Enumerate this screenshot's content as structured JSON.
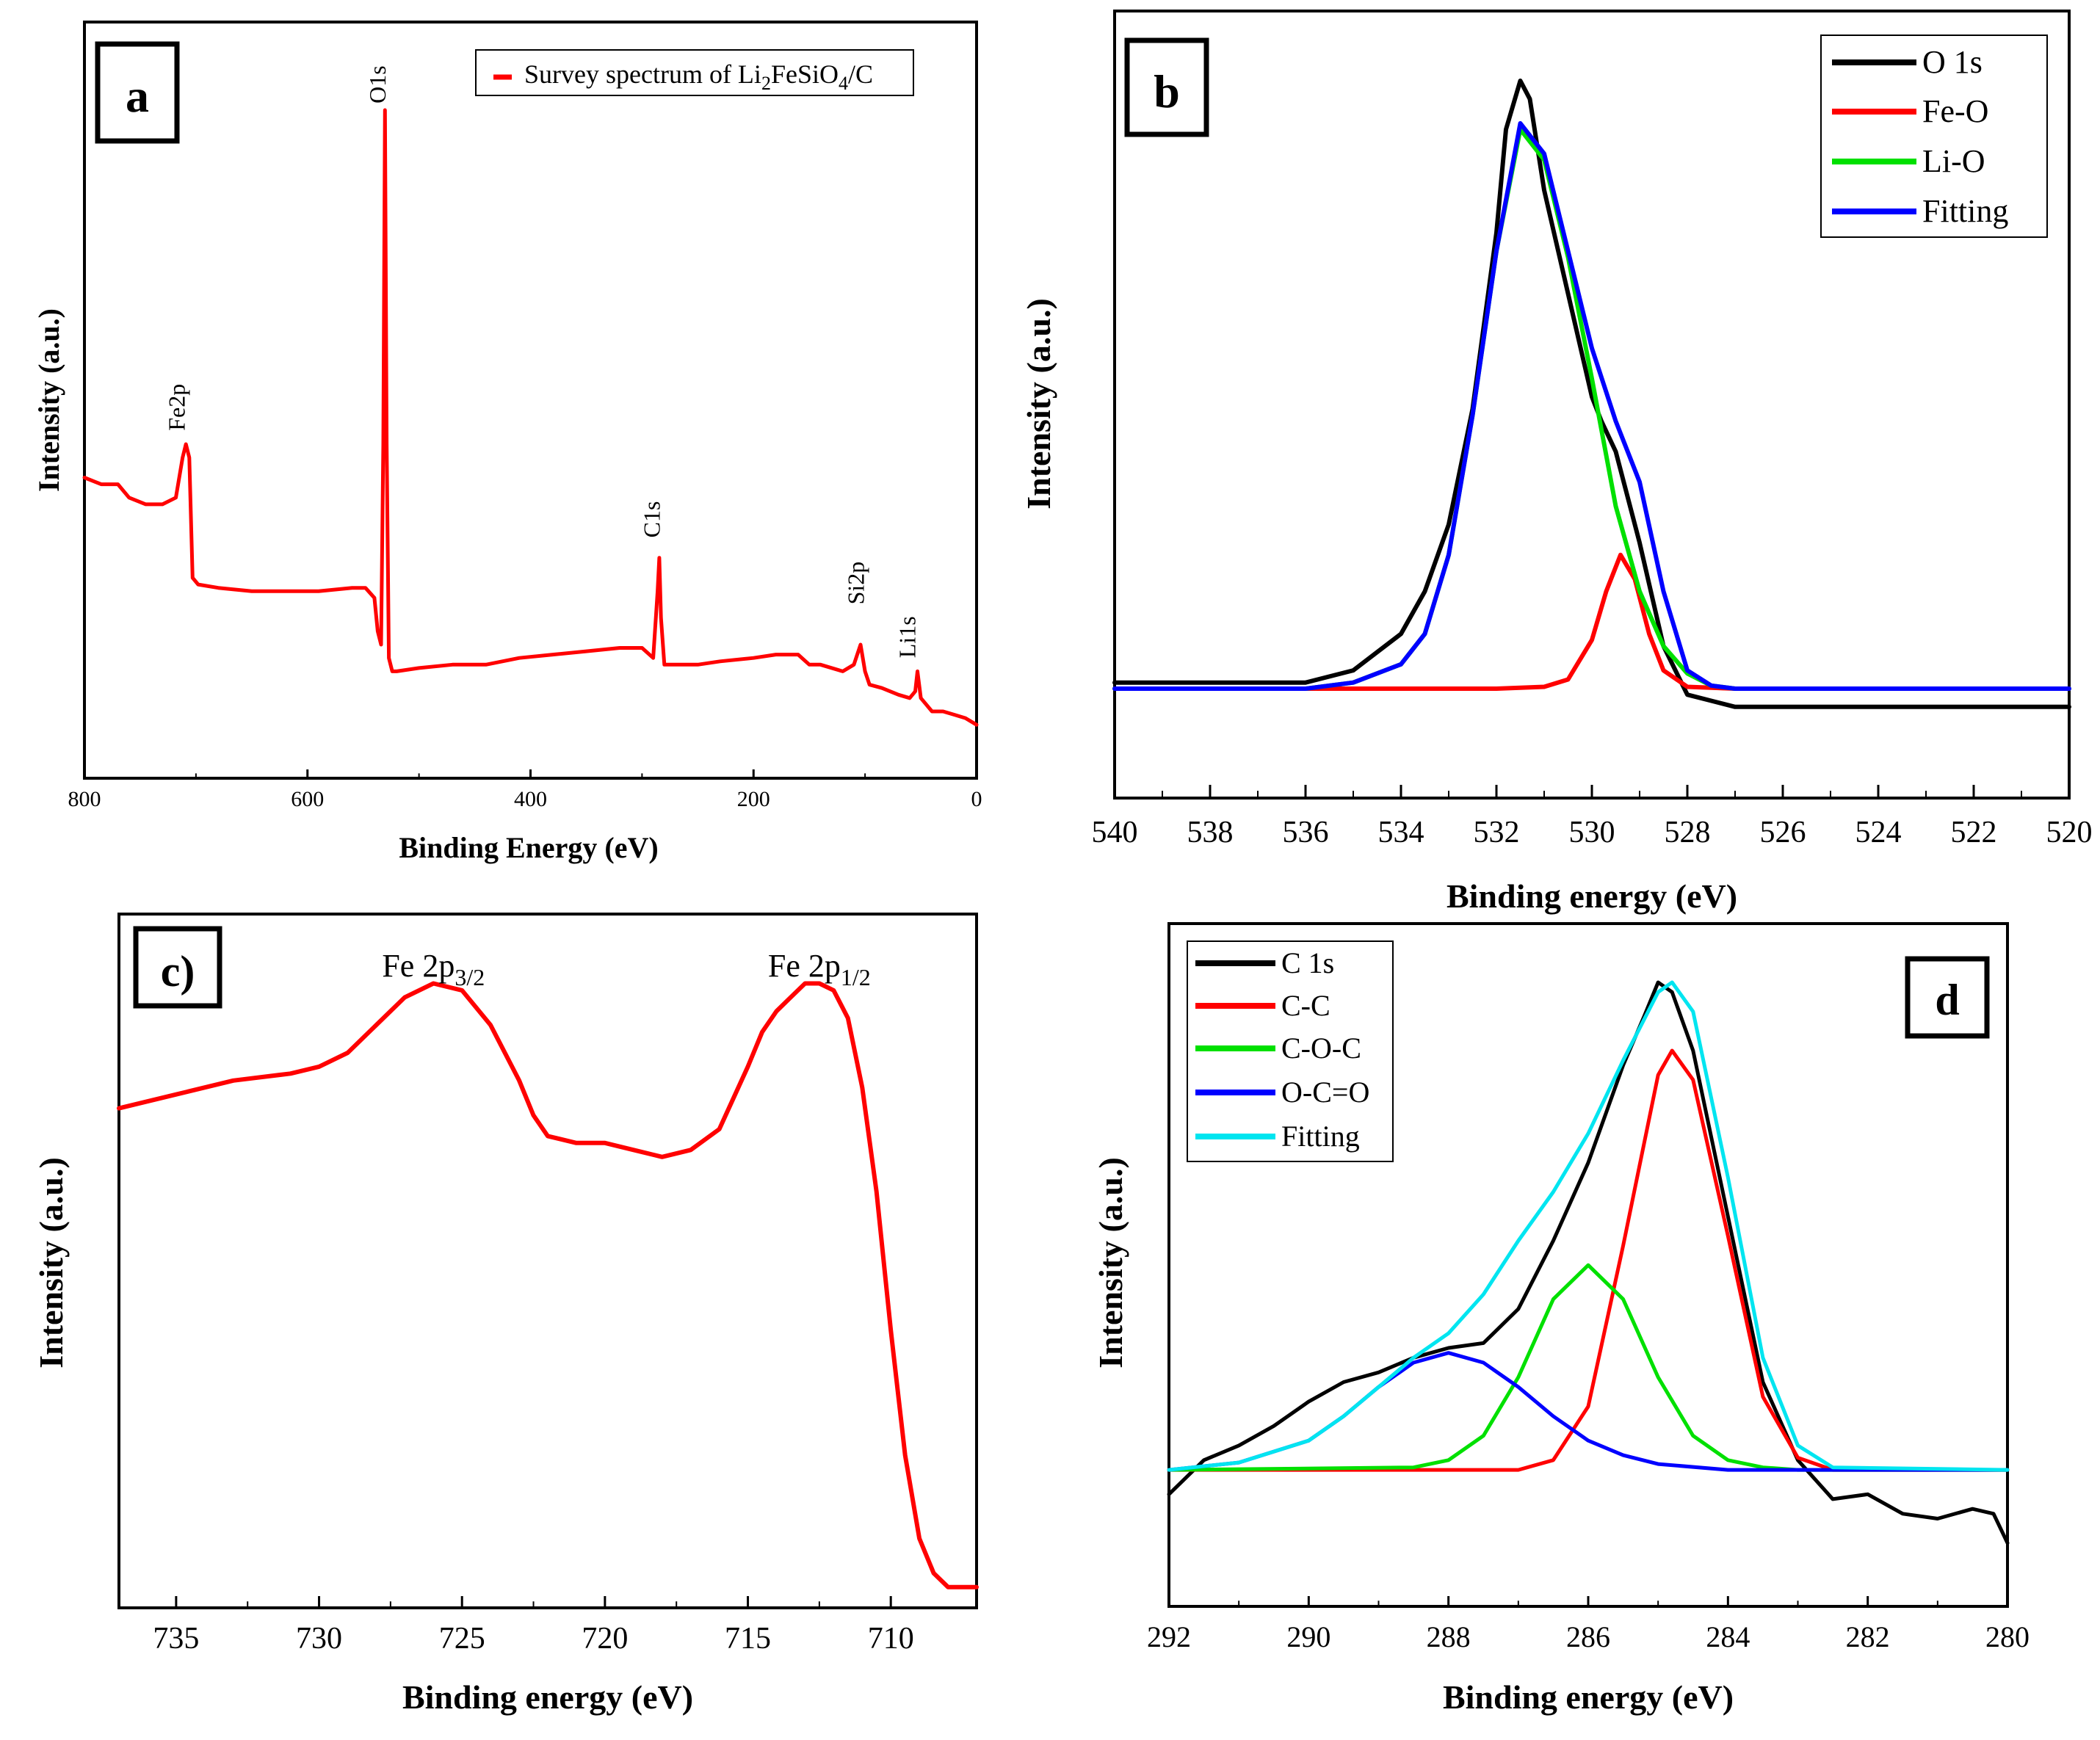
{
  "chart_data": [
    {
      "panel": "a",
      "type": "line",
      "panel_label": "a",
      "xlabel": "Binding Energy (eV)",
      "ylabel": "Intensity (a.u.)",
      "xlim": [
        800,
        0
      ],
      "ylim": [
        0,
        100
      ],
      "xticks": [
        800,
        600,
        400,
        200,
        0
      ],
      "xtick_labels": [
        "800",
        "600",
        "400",
        "200",
        "0"
      ],
      "legend": "top-right",
      "series": [
        {
          "name": "Survey spectrum of Li2FeSiO4/C",
          "legend_text": "Survey spectrum of Li",
          "legend_sub_1": "2",
          "legend_mid": "FeSiO",
          "legend_sub_2": "4",
          "legend_tail": "/C",
          "color": "#ff0000",
          "x": [
            800,
            785,
            770,
            760,
            745,
            730,
            718,
            712,
            709,
            706,
            703,
            698,
            680,
            650,
            620,
            590,
            560,
            548,
            540,
            537,
            534,
            532,
            530.5,
            529,
            527,
            524,
            520,
            500,
            470,
            440,
            410,
            380,
            350,
            320,
            300,
            290,
            286,
            284.5,
            283,
            280,
            270,
            250,
            230,
            200,
            180,
            160,
            150,
            140,
            120,
            110,
            104,
            100,
            96,
            85,
            70,
            60,
            55,
            53,
            50,
            40,
            30,
            20,
            10,
            0
          ],
          "y": [
            45,
            44,
            44,
            42,
            41,
            41,
            42,
            48,
            50,
            48,
            30,
            29,
            28.5,
            28,
            28,
            28,
            28.5,
            28.5,
            27,
            22,
            20,
            50,
            100,
            50,
            18,
            16,
            16,
            16.5,
            17,
            17,
            18,
            18.5,
            19,
            19.5,
            19.5,
            18,
            28,
            33,
            24,
            17,
            17,
            17,
            17.5,
            18,
            18.5,
            18.5,
            17,
            17,
            16,
            17,
            20,
            16,
            14,
            13.5,
            12.5,
            12,
            13,
            16,
            12,
            10,
            10,
            9.5,
            9,
            8
          ]
        }
      ],
      "annotations": [
        {
          "text": "O1s",
          "x": 530,
          "y": 101
        },
        {
          "text": "Fe2p",
          "x": 710,
          "y": 52
        },
        {
          "text": "C1s",
          "x": 284,
          "y": 36
        },
        {
          "text": "Si2p",
          "x": 101,
          "y": 26
        },
        {
          "text": "Li1s",
          "x": 55,
          "y": 18
        }
      ]
    },
    {
      "panel": "b",
      "type": "line",
      "panel_label": "b",
      "xlabel": "Binding energy (eV)",
      "ylabel": "Intensity (a.u.)",
      "xlim": [
        540,
        520
      ],
      "ylim": [
        -18,
        100
      ],
      "xticks": [
        540,
        538,
        536,
        534,
        532,
        530,
        528,
        526,
        524,
        522,
        520
      ],
      "xtick_labels": [
        "540",
        "538",
        "536",
        "534",
        "532",
        "530",
        "528",
        "526",
        "524",
        "522",
        "520"
      ],
      "legend": "top-right",
      "series": [
        {
          "name": "O 1s",
          "color": "#000000",
          "x": [
            540,
            538,
            536,
            535,
            534,
            533.5,
            533,
            532.5,
            532,
            531.8,
            531.5,
            531.3,
            531,
            530.5,
            530,
            529.8,
            529.5,
            529,
            528.5,
            528,
            527.5,
            527,
            526,
            525,
            524,
            523,
            522,
            521,
            520
          ],
          "y": [
            1,
            1,
            1,
            3,
            9,
            16,
            27,
            46,
            75,
            92,
            100,
            97,
            82,
            65,
            48,
            44,
            39,
            24,
            7,
            -1,
            -2,
            -3,
            -3,
            -3,
            -3,
            -3,
            -3,
            -3,
            -3
          ]
        },
        {
          "name": "Fe-O",
          "color": "#ff0000",
          "x": [
            540,
            532,
            531,
            530.5,
            530,
            529.7,
            529.4,
            529.1,
            528.8,
            528.5,
            528,
            527,
            520
          ],
          "y": [
            0,
            0,
            0.3,
            1.5,
            8,
            16,
            22,
            18,
            9,
            3,
            0.3,
            0,
            0
          ]
        },
        {
          "name": "Li-O",
          "color": "#00e000",
          "x": [
            540,
            536,
            535,
            534,
            533.5,
            533,
            532.5,
            532,
            531.5,
            531,
            530.5,
            530,
            529.5,
            529,
            528.5,
            528,
            527.5,
            527,
            520
          ],
          "y": [
            0,
            0,
            1,
            4,
            9,
            22,
            45,
            72,
            92,
            87,
            71,
            51,
            30,
            16,
            7,
            2.5,
            0.5,
            0,
            0
          ]
        },
        {
          "name": "Fitting",
          "color": "#0000ff",
          "x": [
            540,
            536,
            535,
            534,
            533.5,
            533,
            532.5,
            532,
            531.5,
            531,
            530.5,
            530,
            529.5,
            529,
            528.5,
            528,
            527.5,
            527,
            520
          ],
          "y": [
            0,
            0,
            1,
            4,
            9,
            22,
            45,
            72,
            93,
            88,
            72,
            56,
            44,
            34,
            16,
            3,
            0.5,
            0,
            0
          ]
        }
      ]
    },
    {
      "panel": "c",
      "type": "line",
      "panel_label": "c)",
      "xlabel": "Binding energy (eV)",
      "ylabel": "Intensity (a.u.)",
      "xlim": [
        737,
        707
      ],
      "ylim": [
        0,
        100
      ],
      "xticks": [
        735,
        730,
        725,
        720,
        715,
        710
      ],
      "xtick_labels": [
        "735",
        "730",
        "725",
        "720",
        "715",
        "710"
      ],
      "series": [
        {
          "name": "Fe 2p",
          "color": "#ff0000",
          "x": [
            737,
            735,
            733,
            731,
            730,
            729,
            728,
            727,
            726,
            725,
            724,
            723,
            722.5,
            722,
            721,
            720,
            719,
            718,
            717,
            716,
            715,
            714.5,
            714,
            713.5,
            713,
            712.5,
            712,
            711.5,
            711,
            710.5,
            710,
            709.5,
            709,
            708.5,
            708,
            707.5,
            707
          ],
          "y": [
            72,
            74,
            76,
            77,
            78,
            80,
            84,
            88,
            90,
            89,
            84,
            76,
            71,
            68,
            67,
            67,
            66,
            65,
            66,
            69,
            78,
            83,
            86,
            88,
            90,
            90,
            89,
            85,
            75,
            60,
            40,
            22,
            10,
            5,
            3,
            3,
            3
          ]
        }
      ],
      "annotations": [
        {
          "text": "Fe 2p",
          "sub": "3/2",
          "x": 726,
          "y": 91
        },
        {
          "text": "Fe 2p",
          "sub": "1/2",
          "x": 712.5,
          "y": 91
        }
      ]
    },
    {
      "panel": "d",
      "type": "line",
      "panel_label": "d",
      "xlabel": "Binding energy (eV)",
      "ylabel": "Intensity (a.u.)",
      "xlim": [
        292,
        280
      ],
      "ylim": [
        -28,
        100
      ],
      "xticks": [
        292,
        290,
        288,
        286,
        284,
        282,
        280
      ],
      "xtick_labels": [
        "292",
        "290",
        "288",
        "286",
        "284",
        "282",
        "280"
      ],
      "legend": "top-left",
      "series": [
        {
          "name": "C 1s",
          "color": "#000000",
          "x": [
            292,
            291.5,
            291,
            290.5,
            290,
            289.5,
            289,
            288.5,
            288,
            287.5,
            287,
            286.5,
            286,
            285.5,
            285.2,
            285,
            284.8,
            284.5,
            284,
            283.5,
            283,
            282.5,
            282,
            281.5,
            281,
            280.5,
            280.2,
            280
          ],
          "y": [
            -5,
            2,
            5,
            9,
            14,
            18,
            20,
            23,
            25,
            26,
            33,
            47,
            63,
            83,
            93,
            100,
            98,
            86,
            52,
            18,
            2,
            -6,
            -5,
            -9,
            -10,
            -8,
            -9,
            -15
          ]
        },
        {
          "name": "C-C",
          "color": "#ff0000",
          "x": [
            292,
            287,
            286.5,
            286,
            285.5,
            285,
            284.8,
            284.5,
            284,
            283.5,
            283,
            282.5,
            280
          ],
          "y": [
            0,
            0,
            2,
            13,
            46,
            81,
            86,
            80,
            48,
            15,
            2.5,
            0,
            0
          ]
        },
        {
          "name": "C-O-C",
          "color": "#00e000",
          "x": [
            292,
            288.5,
            288,
            287.5,
            287,
            286.5,
            286,
            285.5,
            285,
            284.5,
            284,
            283.5,
            283,
            280
          ],
          "y": [
            0,
            0.5,
            2,
            7,
            19,
            35,
            42,
            35,
            19,
            7,
            2,
            0.5,
            0,
            0
          ]
        },
        {
          "name": "O-C=O",
          "color": "#0000ff",
          "x": [
            292,
            291,
            290,
            289.5,
            289,
            288.5,
            288,
            287.5,
            287,
            286.5,
            286,
            285.5,
            285,
            284,
            280
          ],
          "y": [
            0,
            1.5,
            6,
            11,
            17,
            22,
            24,
            22,
            17,
            11,
            6,
            3,
            1.2,
            0,
            0
          ]
        },
        {
          "name": "Fitting",
          "color": "#00e5f0",
          "x": [
            292,
            291,
            290,
            289.5,
            289,
            288.5,
            288,
            287.5,
            287,
            286.5,
            286,
            285.5,
            285,
            284.8,
            284.5,
            284,
            283.5,
            283,
            282.5,
            280
          ],
          "y": [
            0,
            1.5,
            6,
            11,
            17,
            23,
            28,
            36,
            47,
            57,
            69,
            84,
            98,
            100,
            94,
            60,
            23,
            5,
            0.5,
            0
          ]
        }
      ]
    }
  ]
}
